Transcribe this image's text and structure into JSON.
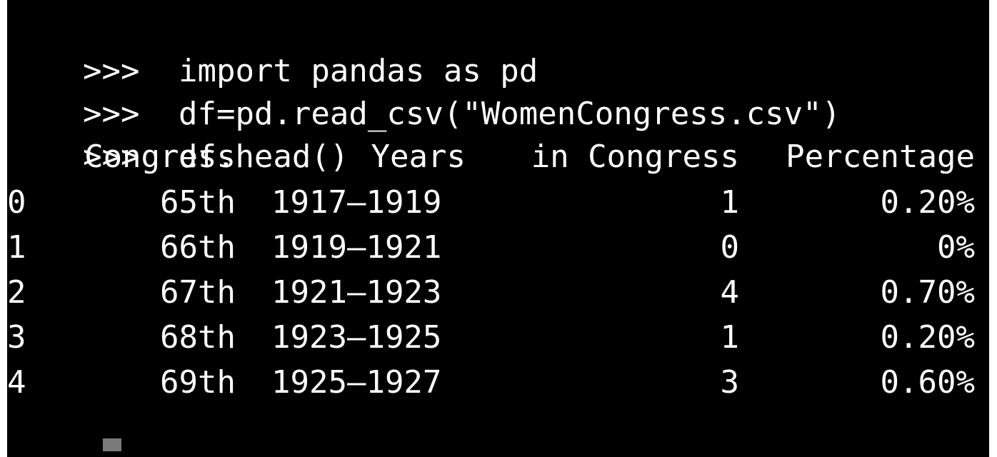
{
  "terminal": {
    "prompt": ">>>",
    "commands": [
      "import pandas as pd",
      "df=pd.read_csv(\"WomenCongress.csv\")",
      "df.head()"
    ],
    "table": {
      "headers": {
        "congress": "Congress",
        "years": "Years",
        "in_congress": "in Congress",
        "percentage": "Percentage"
      },
      "rows": [
        {
          "index": "0",
          "congress": "65th",
          "years": "1917–1919",
          "in_congress": "1",
          "percentage": "0.20%"
        },
        {
          "index": "1",
          "congress": "66th",
          "years": "1919–1921",
          "in_congress": "0",
          "percentage": "0%"
        },
        {
          "index": "2",
          "congress": "67th",
          "years": "1921–1923",
          "in_congress": "4",
          "percentage": "0.70%"
        },
        {
          "index": "3",
          "congress": "68th",
          "years": "1923–1925",
          "in_congress": "1",
          "percentage": "0.20%"
        },
        {
          "index": "4",
          "congress": "69th",
          "years": "1925–1927",
          "in_congress": "3",
          "percentage": "0.60%"
        }
      ]
    }
  }
}
